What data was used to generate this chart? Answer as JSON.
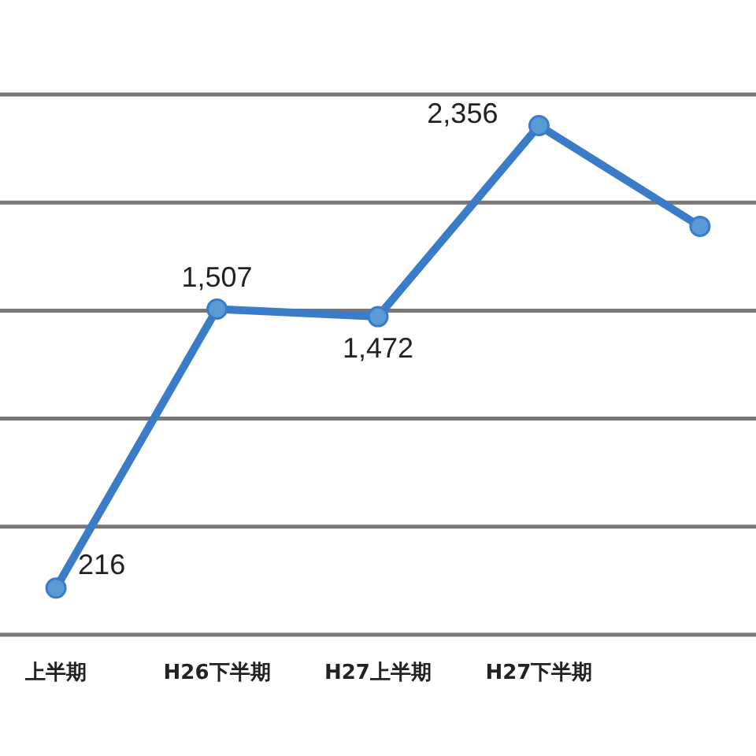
{
  "chart_data": {
    "type": "line",
    "categories": [
      "上半期",
      "H26下半期",
      "H27上半期",
      "H27下半期",
      null
    ],
    "series": [
      {
        "color": "#3a7cc8",
        "values": [
          216,
          1507,
          1472,
          2356,
          1890
        ],
        "value_labels": [
          "216",
          "1,507",
          "1,472",
          "2,356",
          null
        ]
      }
    ],
    "ylim": [
      0,
      2500
    ],
    "yticks": [
      {
        "value": 0,
        "label": null
      },
      {
        "value": 500,
        "label": null
      },
      {
        "value": 1000,
        "label": null
      },
      {
        "value": 1500,
        "label": null
      },
      {
        "value": 2000,
        "label": null
      },
      {
        "value": 2500,
        "label": null
      }
    ],
    "tick_labels": "x",
    "grid": "y",
    "marker": "circle"
  }
}
